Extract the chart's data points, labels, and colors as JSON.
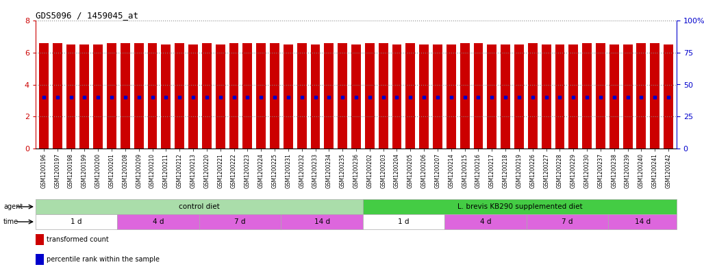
{
  "title": "GDS5096 / 1459045_at",
  "samples": [
    "GSM1200196",
    "GSM1200197",
    "GSM1200198",
    "GSM1200199",
    "GSM1200200",
    "GSM1200201",
    "GSM1200208",
    "GSM1200209",
    "GSM1200210",
    "GSM1200211",
    "GSM1200212",
    "GSM1200213",
    "GSM1200220",
    "GSM1200221",
    "GSM1200222",
    "GSM1200223",
    "GSM1200224",
    "GSM1200225",
    "GSM1200231",
    "GSM1200232",
    "GSM1200233",
    "GSM1200234",
    "GSM1200235",
    "GSM1200236",
    "GSM1200202",
    "GSM1200203",
    "GSM1200204",
    "GSM1200205",
    "GSM1200206",
    "GSM1200207",
    "GSM1200214",
    "GSM1200215",
    "GSM1200216",
    "GSM1200217",
    "GSM1200218",
    "GSM1200219",
    "GSM1200226",
    "GSM1200227",
    "GSM1200228",
    "GSM1200229",
    "GSM1200230",
    "GSM1200237",
    "GSM1200238",
    "GSM1200239",
    "GSM1200240",
    "GSM1200241",
    "GSM1200242"
  ],
  "bar_values": [
    6.6,
    6.6,
    6.5,
    6.5,
    6.5,
    6.6,
    6.6,
    6.6,
    6.6,
    6.5,
    6.6,
    6.5,
    6.6,
    6.5,
    6.6,
    6.6,
    6.6,
    6.6,
    6.5,
    6.6,
    6.5,
    6.6,
    6.6,
    6.5,
    6.6,
    6.6,
    6.5,
    6.6,
    6.5,
    6.5,
    6.5,
    6.6,
    6.6,
    6.5,
    6.5,
    6.5,
    6.6,
    6.5,
    6.5,
    6.5,
    6.6,
    6.6,
    6.5,
    6.5,
    6.6,
    6.6,
    6.5
  ],
  "percentile_values": [
    40,
    40,
    40,
    40,
    40,
    40,
    40,
    40,
    40,
    40,
    40,
    40,
    40,
    40,
    40,
    40,
    40,
    40,
    40,
    40,
    40,
    40,
    40,
    40,
    40,
    40,
    40,
    40,
    40,
    40,
    40,
    40,
    40,
    40,
    40,
    40,
    40,
    40,
    40,
    40,
    40,
    40,
    40,
    40,
    40,
    40,
    40
  ],
  "bar_color": "#cc0000",
  "percentile_color": "#0000cc",
  "ylim_left": [
    0,
    8
  ],
  "ylim_right": [
    0,
    100
  ],
  "yticks_left": [
    0,
    2,
    4,
    6,
    8
  ],
  "yticks_right": [
    0,
    25,
    50,
    75,
    100
  ],
  "agent_groups": [
    {
      "label": "control diet",
      "start": 0,
      "end": 24,
      "color": "#aaddaa"
    },
    {
      "label": "L. brevis KB290 supplemented diet",
      "start": 24,
      "end": 47,
      "color": "#44cc44"
    }
  ],
  "time_groups": [
    {
      "label": "1 d",
      "start": 0,
      "end": 6,
      "color": "#ffffff"
    },
    {
      "label": "4 d",
      "start": 6,
      "end": 12,
      "color": "#dd66dd"
    },
    {
      "label": "7 d",
      "start": 12,
      "end": 18,
      "color": "#dd66dd"
    },
    {
      "label": "14 d",
      "start": 18,
      "end": 24,
      "color": "#dd66dd"
    },
    {
      "label": "1 d",
      "start": 24,
      "end": 30,
      "color": "#ffffff"
    },
    {
      "label": "4 d",
      "start": 30,
      "end": 36,
      "color": "#dd66dd"
    },
    {
      "label": "7 d",
      "start": 36,
      "end": 42,
      "color": "#dd66dd"
    },
    {
      "label": "14 d",
      "start": 42,
      "end": 47,
      "color": "#dd66dd"
    }
  ],
  "legend_items": [
    {
      "label": "transformed count",
      "color": "#cc0000"
    },
    {
      "label": "percentile rank within the sample",
      "color": "#0000cc"
    }
  ],
  "left_axis_color": "#cc0000",
  "right_axis_color": "#0000cc",
  "grid_color": "#888888",
  "background_color": "#ffffff",
  "fig_width": 10.28,
  "fig_height": 3.93,
  "fig_dpi": 100
}
